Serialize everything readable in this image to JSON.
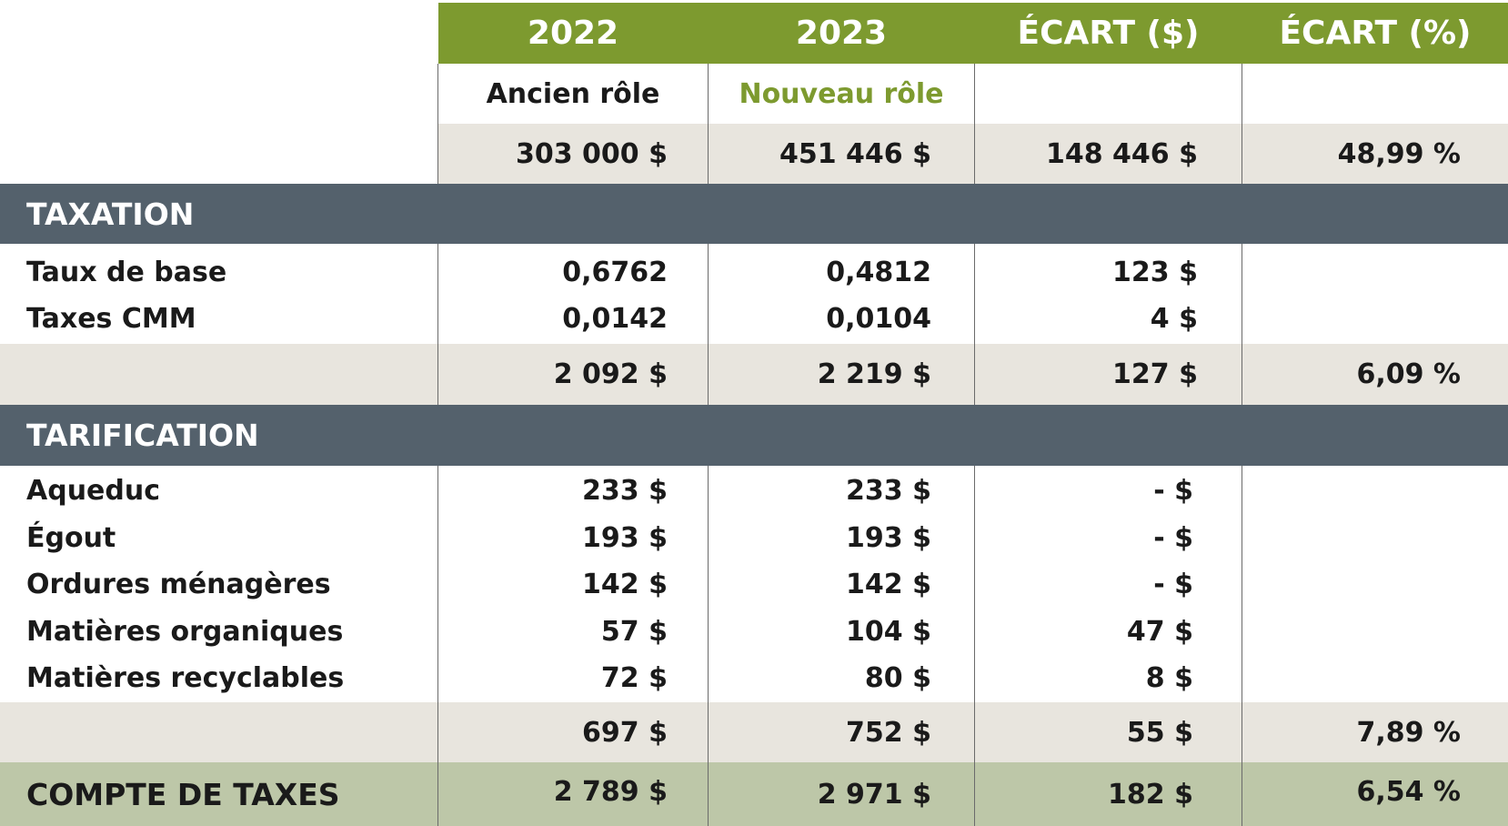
{
  "colors": {
    "header_green": "#7d9a2f",
    "nouveau_role_green": "#7d9a2f",
    "value_row_beige": "#e8e5de",
    "section_slate": "#54616c",
    "total_row_sage": "#bdc7a8"
  },
  "header": {
    "col_2022": "2022",
    "col_2023": "2023",
    "col_ecart_dollar": "ÉCART ($)",
    "col_ecart_pct": "ÉCART (%)"
  },
  "subheader": {
    "col_2022": "Ancien rôle",
    "col_2023": "Nouveau rôle"
  },
  "valuation": {
    "v2022": "303 000 $",
    "v2023": "451 446 $",
    "ecart": "148 446 $",
    "pct": "48,99 %"
  },
  "taxation": {
    "title": "TAXATION",
    "rows": [
      {
        "label": "Taux de base",
        "v2022": "0,6762",
        "v2023": "0,4812",
        "ecart": "123 $"
      },
      {
        "label": "Taxes CMM",
        "v2022": "0,0142",
        "v2023": "0,0104",
        "ecart": "4 $"
      }
    ],
    "total": {
      "v2022": "2 092 $",
      "v2023": "2 219 $",
      "ecart": "127 $",
      "pct": "6,09 %"
    }
  },
  "tarification": {
    "title": "TARIFICATION",
    "rows": [
      {
        "label": "Aqueduc",
        "v2022": "233 $",
        "v2023": "233 $",
        "ecart": "- $"
      },
      {
        "label": "Égout",
        "v2022": "193 $",
        "v2023": "193 $",
        "ecart": "- $"
      },
      {
        "label": "Ordures ménagères",
        "v2022": "142 $",
        "v2023": "142 $",
        "ecart": "- $"
      },
      {
        "label": "Matières organiques",
        "v2022": "57 $",
        "v2023": "104 $",
        "ecart": "47 $"
      },
      {
        "label": "Matières recyclables",
        "v2022": "72 $",
        "v2023": "80 $",
        "ecart": "8 $"
      }
    ],
    "total": {
      "v2022": "697 $",
      "v2023": "752 $",
      "ecart": "55 $",
      "pct": "7,89 %"
    }
  },
  "compte": {
    "label": "COMPTE DE TAXES",
    "v2022": "2 789 $",
    "v2023": "2 971 $",
    "ecart": "182 $",
    "pct": "6,54 %"
  }
}
